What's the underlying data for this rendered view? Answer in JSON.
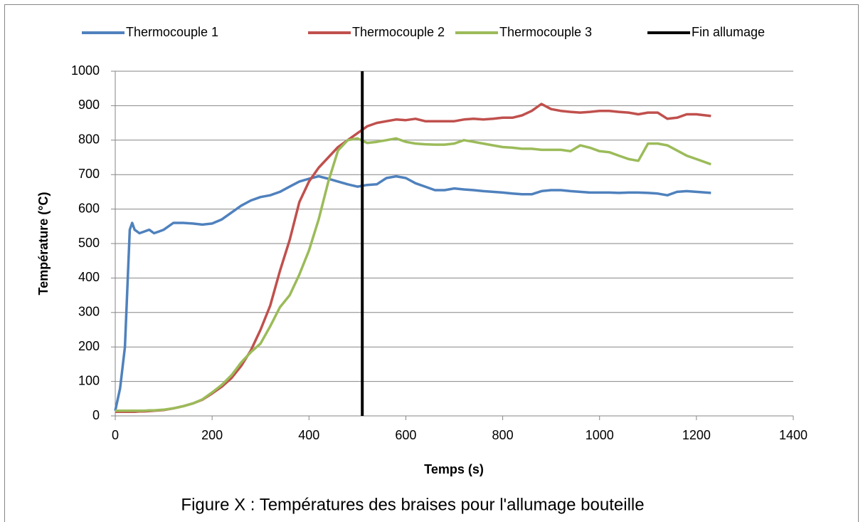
{
  "chart_data": {
    "type": "line",
    "caption": "Figure X : Températures des braises pour l'allumage bouteille",
    "xlabel": "Temps (s)",
    "ylabel": "Température (°C)",
    "xlim": [
      0,
      1400
    ],
    "xticks": [
      0,
      200,
      400,
      600,
      800,
      1000,
      1200,
      1400
    ],
    "ylim": [
      0,
      1000
    ],
    "yticks": [
      0,
      100,
      200,
      300,
      400,
      500,
      600,
      700,
      800,
      900,
      1000
    ],
    "grid": true,
    "legend": "top",
    "x": [
      0,
      10,
      20,
      30,
      35,
      40,
      50,
      60,
      70,
      80,
      90,
      100,
      120,
      140,
      160,
      180,
      200,
      220,
      240,
      260,
      280,
      300,
      320,
      340,
      360,
      380,
      400,
      420,
      440,
      460,
      480,
      500,
      520,
      540,
      560,
      580,
      600,
      620,
      640,
      660,
      680,
      700,
      720,
      740,
      760,
      780,
      800,
      820,
      840,
      860,
      880,
      900,
      920,
      940,
      960,
      980,
      1000,
      1020,
      1040,
      1060,
      1080,
      1100,
      1120,
      1140,
      1160,
      1180,
      1200,
      1230
    ],
    "series": [
      {
        "name": "Thermocouple 1",
        "color": "#4f81bd",
        "values": [
          15,
          80,
          200,
          540,
          560,
          540,
          530,
          535,
          540,
          530,
          535,
          540,
          560,
          560,
          558,
          555,
          558,
          570,
          590,
          610,
          625,
          635,
          640,
          650,
          665,
          680,
          688,
          695,
          688,
          680,
          672,
          665,
          670,
          672,
          690,
          695,
          690,
          675,
          665,
          655,
          655,
          660,
          657,
          655,
          652,
          650,
          648,
          645,
          643,
          643,
          652,
          655,
          655,
          652,
          650,
          648,
          648,
          648,
          647,
          648,
          648,
          647,
          645,
          640,
          650,
          652,
          650,
          647
        ]
      },
      {
        "name": "Thermocouple 2",
        "color": "#c0504d",
        "values": [
          12,
          12,
          12,
          12,
          12,
          12,
          13,
          13,
          14,
          15,
          16,
          17,
          22,
          28,
          36,
          47,
          65,
          85,
          110,
          145,
          190,
          250,
          320,
          420,
          510,
          620,
          680,
          720,
          750,
          780,
          800,
          820,
          840,
          850,
          855,
          860,
          858,
          862,
          855,
          855,
          855,
          855,
          860,
          862,
          860,
          862,
          865,
          865,
          872,
          885,
          905,
          890,
          885,
          882,
          880,
          882,
          885,
          885,
          882,
          880,
          875,
          880,
          880,
          862,
          865,
          875,
          875,
          870
        ]
      },
      {
        "name": "Thermocouple 3",
        "color": "#9bbb59",
        "values": [
          15,
          15,
          15,
          15,
          15,
          15,
          15,
          15,
          16,
          16,
          17,
          18,
          22,
          28,
          36,
          48,
          68,
          90,
          118,
          155,
          185,
          210,
          260,
          315,
          350,
          410,
          480,
          570,
          680,
          770,
          800,
          805,
          792,
          795,
          800,
          805,
          795,
          790,
          788,
          787,
          787,
          790,
          800,
          795,
          790,
          785,
          780,
          778,
          775,
          775,
          772,
          772,
          772,
          768,
          785,
          778,
          768,
          765,
          755,
          745,
          740,
          790,
          790,
          785,
          770,
          755,
          745,
          730
        ]
      },
      {
        "name": "Fin allumage",
        "color": "#000000",
        "x": [
          510,
          510
        ],
        "values": [
          0,
          1000
        ]
      }
    ]
  }
}
